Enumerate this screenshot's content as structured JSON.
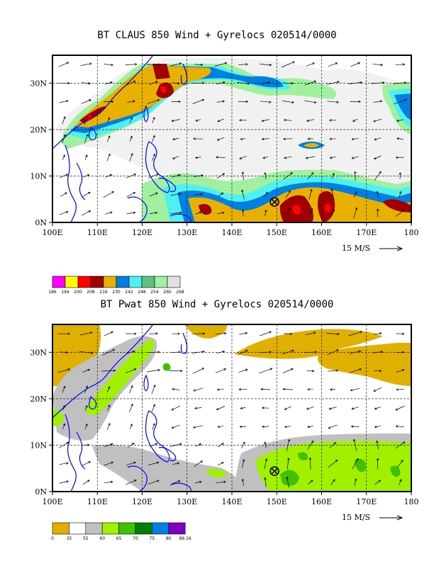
{
  "chart_data": [
    {
      "type": "heatmap",
      "title": "BT CLAUS 850 Wind + Gyrelocs 020514/0000",
      "x_ticks": [
        "100E",
        "110E",
        "120E",
        "130E",
        "140E",
        "150E",
        "160E",
        "170E",
        "180"
      ],
      "y_ticks": [
        "0N",
        "10N",
        "20N",
        "30N"
      ],
      "xlim": [
        100,
        180
      ],
      "ylim": [
        0,
        36
      ],
      "grid": true,
      "reference_vector": "15 M/S",
      "colorbar": {
        "colors": [
          "#ff00ff",
          "#ffff00",
          "#ff0000",
          "#a00000",
          "#e8b000",
          "#0080e0",
          "#50f0f0",
          "#60c080",
          "#a0f0a0",
          "#e0e0e0"
        ],
        "labels": [
          "186",
          "194",
          "200",
          "208",
          "216",
          "230",
          "242",
          "248",
          "254",
          "260",
          "268"
        ]
      },
      "storm_location": {
        "lon": 149.5,
        "lat": 4.4
      }
    },
    {
      "type": "heatmap",
      "title": "BT Pwat 850 Wind + Gyrelocs 020514/0000",
      "x_ticks": [
        "100E",
        "110E",
        "120E",
        "130E",
        "140E",
        "150E",
        "160E",
        "170E",
        "180"
      ],
      "y_ticks": [
        "0N",
        "10N",
        "20N",
        "30N"
      ],
      "xlim": [
        100,
        180
      ],
      "ylim": [
        0,
        36
      ],
      "grid": true,
      "reference_vector": "15 M/S",
      "colorbar": {
        "colors": [
          "#e0b000",
          "#ffffff",
          "#c0c0c0",
          "#a0f000",
          "#40c000",
          "#008000",
          "#0080e0",
          "#8000c0"
        ],
        "labels": [
          "0",
          "35",
          "55",
          "60",
          "65",
          "70",
          "75",
          "80",
          "89.16"
        ]
      },
      "storm_location": {
        "lon": 149.5,
        "lat": 4.4
      }
    }
  ]
}
